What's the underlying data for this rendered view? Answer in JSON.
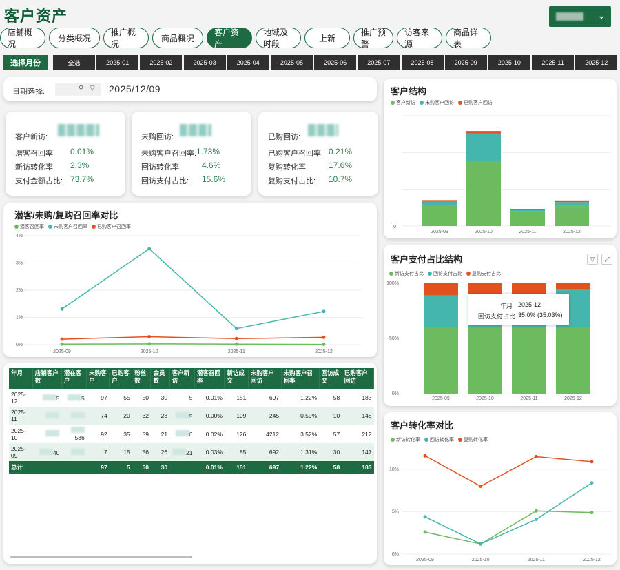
{
  "title": "客户资产",
  "nav": [
    "店铺概况",
    "分类概况",
    "推广概况",
    "商品概况",
    "客户资产",
    "地域及时段",
    "上新",
    "推广预警",
    "访客来源",
    "商品详表"
  ],
  "nav_active": 4,
  "month_label": "选择月份",
  "months": [
    "全选",
    "2025-01",
    "2025-02",
    "2025-03",
    "2025-04",
    "2025-05",
    "2025-06",
    "2025-07",
    "2025-08",
    "2025-09",
    "2025-10",
    "2025-11",
    "2025-12"
  ],
  "date": {
    "label": "日期选择:",
    "value": "2025/12/09"
  },
  "kpi": [
    {
      "head": "客户新访:",
      "rows": [
        [
          "潜客召回率:",
          "0.01%"
        ],
        [
          "新访转化率:",
          "2.3%"
        ],
        [
          "支付金额占比:",
          "73.7%"
        ]
      ]
    },
    {
      "head": "未购回访:",
      "rows": [
        [
          "未购客户召回率:",
          "1.73%"
        ],
        [
          "回访转化率:",
          "4.6%"
        ],
        [
          "回访支付占比:",
          "15.6%"
        ]
      ]
    },
    {
      "head": "已购回访:",
      "rows": [
        [
          "已购客户召回率:",
          "0.21%"
        ],
        [
          "复购转化率:",
          "17.6%"
        ],
        [
          "复购支付占比:",
          "10.7%"
        ]
      ]
    }
  ],
  "colors": {
    "green": "#6dbb5f",
    "teal": "#45b6ad",
    "red": "#e3511f",
    "dark": "#1e6b43"
  },
  "recall_chart": {
    "title": "潜客/未购/复购召回率对比",
    "legend": [
      "潜客召回率",
      "未购客户召回率",
      "已购客户召回率"
    ],
    "x": [
      "2025-09",
      "2025-10",
      "2025-11",
      "2025-12"
    ],
    "yticks": [
      "0%",
      "1%",
      "2%",
      "3%",
      "4%"
    ],
    "ylim": [
      0,
      4
    ],
    "series": [
      {
        "name": "潜客召回率",
        "values": [
          0.02,
          0.03,
          0.02,
          0.01
        ]
      },
      {
        "name": "未购客户召回率",
        "values": [
          1.31,
          3.52,
          0.59,
          1.22
        ]
      },
      {
        "name": "已购客户召回率",
        "values": [
          0.2,
          0.29,
          0.22,
          0.27
        ]
      }
    ]
  },
  "structure_chart": {
    "title": "客户结构",
    "legend": [
      "客户新访",
      "未购客户回访",
      "已购客户回访"
    ],
    "x": [
      "2025-09",
      "2025-10",
      "2025-11",
      "2025-12"
    ],
    "ytick0": "0",
    "series": [
      {
        "name": "客户新访",
        "values": [
          0.65,
          2.0,
          0.45,
          0.62
        ]
      },
      {
        "name": "未购客户回访",
        "values": [
          0.1,
          0.85,
          0.05,
          0.12
        ]
      },
      {
        "name": "已购客户回访",
        "values": [
          0.05,
          0.08,
          0.03,
          0.05
        ]
      }
    ],
    "ymax": 3.4
  },
  "pay_chart": {
    "title": "客户支付占比结构",
    "legend": [
      "新访支付占比",
      "回访支付占比",
      "复购支付占比"
    ],
    "x": [
      "2025-09",
      "2025-10",
      "2025-11",
      "2025-12"
    ],
    "yticks": [
      "0%",
      "50%",
      "100%"
    ],
    "series": [
      {
        "name": "新访支付占比",
        "values": [
          60,
          60,
          60,
          60
        ]
      },
      {
        "name": "回访支付占比",
        "values": [
          29,
          29,
          29,
          35
        ]
      },
      {
        "name": "复购支付占比",
        "values": [
          11,
          11,
          11,
          5
        ]
      }
    ],
    "tooltip": {
      "k1": "年月",
      "v1": "2025-12",
      "k2": "回访支付占比",
      "v2": "35.0% (35.03%)"
    }
  },
  "conv_chart": {
    "title": "客户转化率对比",
    "legend": [
      "新访转化率",
      "回访转化率",
      "复购转化率"
    ],
    "x": [
      "2025-09",
      "2025-10",
      "2025-11",
      "2025-12"
    ],
    "yticks": [
      "0%",
      "5%",
      "10%"
    ],
    "ylim": [
      0,
      13
    ],
    "series": [
      {
        "name": "新访转化率",
        "values": [
          2.6,
          1.2,
          5.1,
          4.9
        ]
      },
      {
        "name": "回访转化率",
        "values": [
          4.4,
          1.2,
          4.1,
          8.4
        ]
      },
      {
        "name": "复购转化率",
        "values": [
          11.6,
          8.0,
          11.5,
          10.9
        ]
      }
    ]
  },
  "table": {
    "headers": [
      "年月",
      "店铺客户数",
      "潜在客户",
      "未购客户",
      "已购客户",
      "粉丝数",
      "会员数",
      "客户新访",
      "潜客召回率",
      "新访成交",
      "未购客户回访",
      "未购客户召回率",
      "回访成交",
      "已购客户回访"
    ],
    "rows": [
      [
        "2025-12",
        "5",
        "5",
        "97",
        "55",
        "50",
        "30",
        "5",
        "0.01%",
        "151",
        "697",
        "1.22%",
        "58",
        "183"
      ],
      [
        "2025-11",
        "",
        "",
        "74",
        "20",
        "32",
        "28",
        "5",
        "0.00%",
        "109",
        "245",
        "0.59%",
        "10",
        "148"
      ],
      [
        "2025-10",
        "",
        "536",
        "92",
        "35",
        "59",
        "21",
        "0",
        "0.02%",
        "126",
        "4212",
        "3.52%",
        "57",
        "212"
      ],
      [
        "2025-09",
        "40",
        "",
        "7",
        "15",
        "56",
        "26",
        "21",
        "0.03%",
        "85",
        "692",
        "1.31%",
        "30",
        "147"
      ]
    ],
    "total": [
      "总计",
      "",
      "",
      "97",
      "5",
      "50",
      "30",
      "",
      "0.01%",
      "151",
      "697",
      "1.22%",
      "58",
      "183"
    ]
  }
}
